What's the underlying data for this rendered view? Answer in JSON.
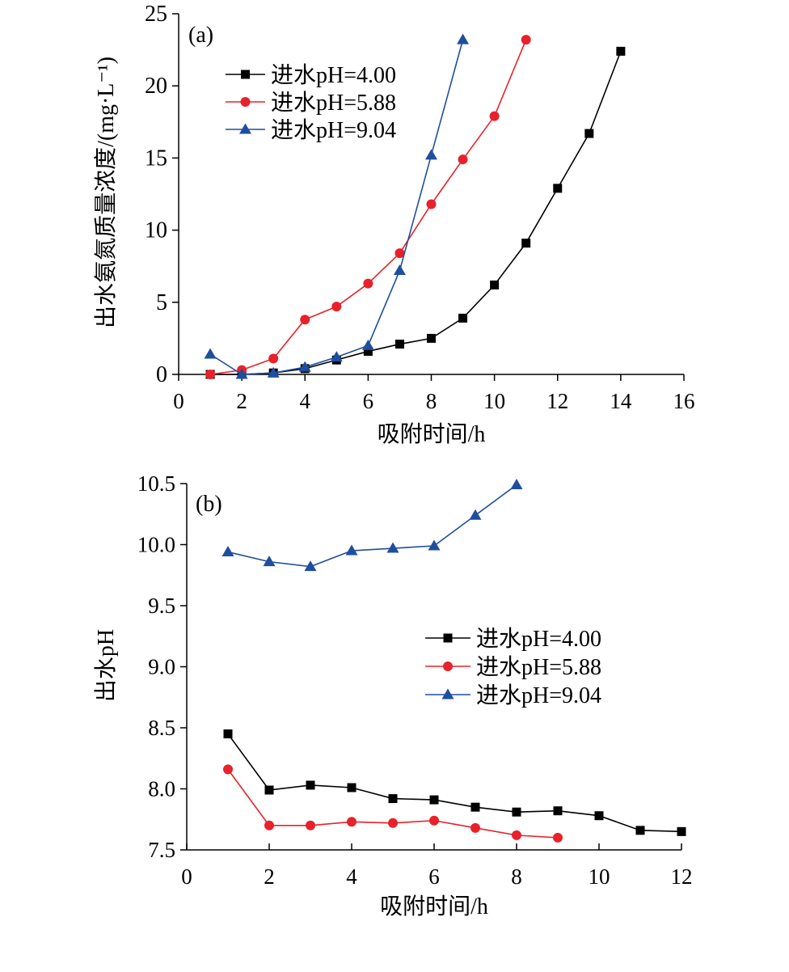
{
  "chart_data": [
    {
      "type": "line",
      "panel_label": "(a)",
      "xlabel": "吸附时间/h",
      "ylabel": "出水氨氮质量浓度/(mg·L⁻¹)",
      "xlim": [
        0,
        16
      ],
      "ylim": [
        0,
        25
      ],
      "xticks": [
        0,
        2,
        4,
        6,
        8,
        10,
        12,
        14,
        16
      ],
      "yticks": [
        0,
        5,
        10,
        15,
        20,
        25
      ],
      "legend_position": "top-left",
      "grid": false,
      "series": [
        {
          "name": "进水pH=4.00",
          "color": "#000000",
          "marker": "square",
          "x": [
            1,
            2,
            3,
            4,
            5,
            6,
            7,
            8,
            9,
            10,
            11,
            12,
            13,
            14
          ],
          "y": [
            0.0,
            0.0,
            0.1,
            0.4,
            1.0,
            1.6,
            2.1,
            2.5,
            3.9,
            6.2,
            9.1,
            12.9,
            16.7,
            22.4
          ]
        },
        {
          "name": "进水pH=5.88",
          "color": "#e8212a",
          "marker": "circle",
          "x": [
            1,
            2,
            3,
            4,
            5,
            6,
            7,
            8,
            9,
            10,
            11
          ],
          "y": [
            0.0,
            0.3,
            1.1,
            3.8,
            4.7,
            6.3,
            8.4,
            11.8,
            14.9,
            17.9,
            23.2
          ]
        },
        {
          "name": "进水pH=9.04",
          "color": "#1f4e9e",
          "marker": "triangle",
          "x": [
            1,
            2,
            3,
            4,
            5,
            6,
            7,
            8,
            9
          ],
          "y": [
            1.4,
            0.0,
            0.1,
            0.5,
            1.2,
            2.0,
            7.2,
            15.2,
            23.2
          ]
        }
      ]
    },
    {
      "type": "line",
      "panel_label": "(b)",
      "xlabel": "吸附时间/h",
      "ylabel": "出水pH",
      "xlim": [
        0,
        12
      ],
      "ylim": [
        7.5,
        10.5
      ],
      "xticks": [
        0,
        2,
        4,
        6,
        8,
        10,
        12
      ],
      "yticks": [
        7.5,
        8.0,
        8.5,
        9.0,
        9.5,
        10.0,
        10.5
      ],
      "ytick_labels": [
        "7.5",
        "8.0",
        "8.5",
        "9.0",
        "9.5",
        "10.0",
        "10.5"
      ],
      "legend_position": "right-middle",
      "grid": false,
      "series": [
        {
          "name": "进水pH=4.00",
          "color": "#000000",
          "marker": "square",
          "x": [
            1,
            2,
            3,
            4,
            5,
            6,
            7,
            8,
            9,
            10,
            11,
            12
          ],
          "y": [
            8.45,
            7.99,
            8.03,
            8.01,
            7.92,
            7.91,
            7.85,
            7.81,
            7.82,
            7.78,
            7.66,
            7.65
          ]
        },
        {
          "name": "进水pH=5.88",
          "color": "#e8212a",
          "marker": "circle",
          "x": [
            1,
            2,
            3,
            4,
            5,
            6,
            7,
            8,
            9
          ],
          "y": [
            8.16,
            7.7,
            7.7,
            7.73,
            7.72,
            7.74,
            7.68,
            7.62,
            7.6
          ]
        },
        {
          "name": "进水pH=9.04",
          "color": "#1f4e9e",
          "marker": "triangle",
          "x": [
            1,
            2,
            3,
            4,
            5,
            6,
            7,
            8
          ],
          "y": [
            9.94,
            9.86,
            9.82,
            9.95,
            9.97,
            9.99,
            10.24,
            10.49
          ]
        }
      ]
    }
  ]
}
